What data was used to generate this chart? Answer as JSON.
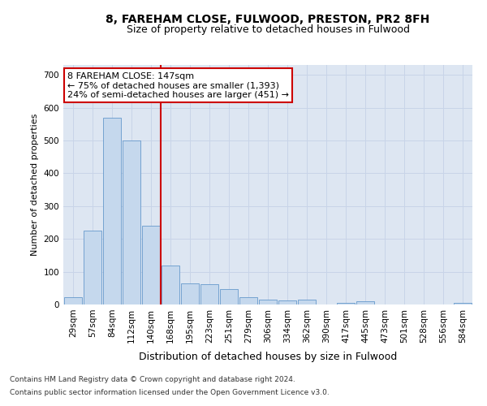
{
  "title": "8, FAREHAM CLOSE, FULWOOD, PRESTON, PR2 8FH",
  "subtitle": "Size of property relative to detached houses in Fulwood",
  "xlabel": "Distribution of detached houses by size in Fulwood",
  "ylabel": "Number of detached properties",
  "categories": [
    "29sqm",
    "57sqm",
    "84sqm",
    "112sqm",
    "140sqm",
    "168sqm",
    "195sqm",
    "223sqm",
    "251sqm",
    "279sqm",
    "306sqm",
    "334sqm",
    "362sqm",
    "390sqm",
    "417sqm",
    "445sqm",
    "473sqm",
    "501sqm",
    "528sqm",
    "556sqm",
    "584sqm"
  ],
  "values": [
    22,
    225,
    570,
    500,
    240,
    120,
    65,
    62,
    48,
    22,
    15,
    12,
    15,
    0,
    5,
    10,
    0,
    0,
    0,
    0,
    5
  ],
  "bar_color": "#c5d8ed",
  "bar_edge_color": "#6699cc",
  "vline_x_index": 4,
  "vline_color": "#cc0000",
  "annotation_text": "8 FAREHAM CLOSE: 147sqm\n← 75% of detached houses are smaller (1,393)\n24% of semi-detached houses are larger (451) →",
  "annotation_box_color": "#ffffff",
  "annotation_box_edge": "#cc0000",
  "ylim": [
    0,
    730
  ],
  "yticks": [
    0,
    100,
    200,
    300,
    400,
    500,
    600,
    700
  ],
  "grid_color": "#c8d4e8",
  "bg_color": "#dde6f2",
  "footer_line1": "Contains HM Land Registry data © Crown copyright and database right 2024.",
  "footer_line2": "Contains public sector information licensed under the Open Government Licence v3.0.",
  "title_fontsize": 10,
  "subtitle_fontsize": 9,
  "ylabel_fontsize": 8,
  "xlabel_fontsize": 9,
  "tick_fontsize": 7.5,
  "annotation_fontsize": 8,
  "footer_fontsize": 6.5
}
